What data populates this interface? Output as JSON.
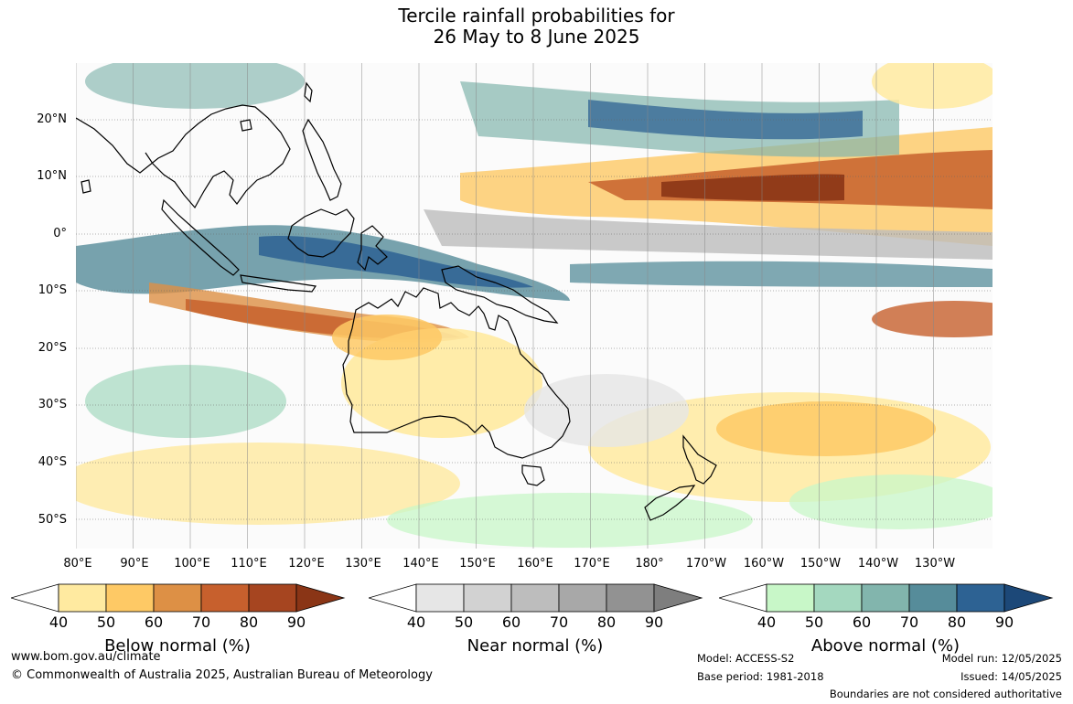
{
  "title": {
    "line1": "Tercile rainfall probabilities for",
    "line2": "26 May to 8 June 2025"
  },
  "map": {
    "lat_labels": [
      "20°N",
      "10°N",
      "0°",
      "10°S",
      "20°S",
      "30°S",
      "40°S",
      "50°S"
    ],
    "lon_labels": [
      "80°E",
      "90°E",
      "100°E",
      "110°E",
      "120°E",
      "130°E",
      "140°E",
      "150°E",
      "160°E",
      "170°E",
      "180°",
      "170°W",
      "160°W",
      "150°W",
      "140°W",
      "130°W"
    ],
    "colors": {
      "below": [
        "#ffffff",
        "#ffeaa0",
        "#fec965",
        "#dd9045",
        "#c7602d",
        "#a64520",
        "#8a3516"
      ],
      "near": [
        "#ffffff",
        "#e6e6e6",
        "#d2d2d2",
        "#bdbdbd",
        "#a8a8a8",
        "#929292",
        "#7e7e7e"
      ],
      "above": [
        "#ffffff",
        "#c8f7c8",
        "#a4d8bf",
        "#82b5ad",
        "#568c9a",
        "#2d6293",
        "#1c4878"
      ]
    }
  },
  "legends": [
    {
      "key": "below",
      "ticks": [
        "40",
        "50",
        "60",
        "70",
        "80",
        "90"
      ],
      "title": "Below normal (%)"
    },
    {
      "key": "near",
      "ticks": [
        "40",
        "50",
        "60",
        "70",
        "80",
        "90"
      ],
      "title": "Near normal (%)"
    },
    {
      "key": "above",
      "ticks": [
        "40",
        "50",
        "60",
        "70",
        "80",
        "90"
      ],
      "title": "Above normal (%)"
    }
  ],
  "footer": {
    "website": "www.bom.gov.au/climate",
    "copyright": "© Commonwealth of Australia 2025, Australian Bureau of Meteorology",
    "model": "Model: ACCESS-S2",
    "base_period": "Base period: 1981-2018",
    "model_run": "Model run: 12/05/2025",
    "issued": "Issued: 14/05/2025",
    "disclaimer": "Boundaries are not considered authoritative"
  }
}
